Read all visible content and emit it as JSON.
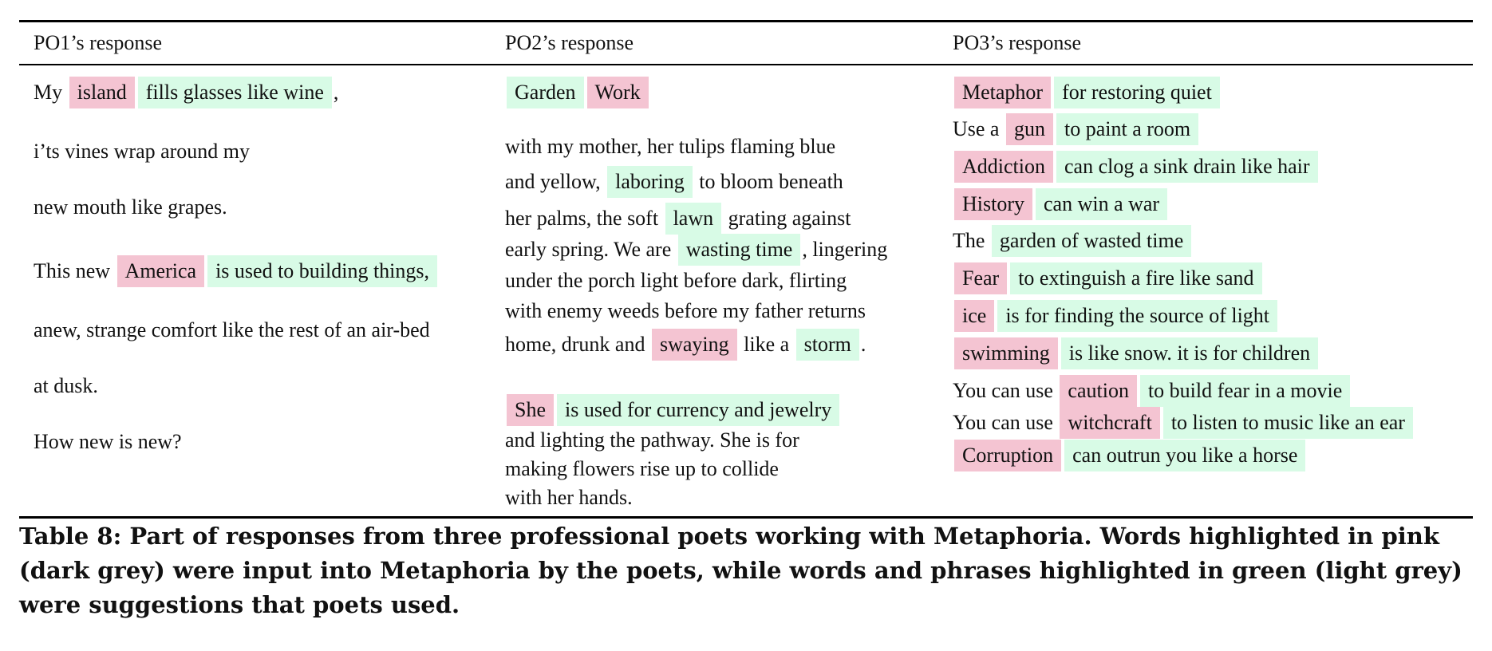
{
  "table": {
    "headers": [
      "PO1’s response",
      "PO2’s response",
      "PO3’s response"
    ],
    "po1": {
      "lines": [
        [
          {
            "t": "My ",
            "h": null
          },
          {
            "t": "island",
            "h": "pink"
          },
          {
            "t": "fills glasses like wine",
            "h": "green"
          },
          {
            "t": ",",
            "h": null
          }
        ],
        [
          {
            "t": "i’ts vines wrap around my",
            "h": null
          }
        ],
        [
          {
            "t": "new mouth like grapes.",
            "h": null
          }
        ],
        [
          {
            "t": "This new ",
            "h": null
          },
          {
            "t": "America",
            "h": "pink"
          },
          {
            "t": "is used to building things,",
            "h": "green"
          }
        ],
        [
          {
            "t": "anew, strange comfort like the rest of an air-bed",
            "h": null
          }
        ],
        [
          {
            "t": "at dusk.",
            "h": null
          }
        ],
        [
          {
            "t": "How new is new?",
            "h": null
          }
        ]
      ]
    },
    "po2": {
      "lines": [
        [
          {
            "t": "Garden",
            "h": "green"
          },
          {
            "t": "Work",
            "h": "pink"
          }
        ],
        [
          {
            "t": "with my mother, her tulips flaming blue",
            "h": null
          }
        ],
        [
          {
            "t": "and yellow, ",
            "h": null
          },
          {
            "t": "laboring",
            "h": "green"
          },
          {
            "t": " to bloom beneath",
            "h": null
          }
        ],
        [
          {
            "t": "her palms, the soft ",
            "h": null
          },
          {
            "t": "lawn",
            "h": "green"
          },
          {
            "t": " grating against",
            "h": null
          }
        ],
        [
          {
            "t": "early spring. We are ",
            "h": null
          },
          {
            "t": "wasting time",
            "h": "green"
          },
          {
            "t": ", lingering",
            "h": null
          }
        ],
        [
          {
            "t": "under the porch light before dark, flirting",
            "h": null
          }
        ],
        [
          {
            "t": "with enemy weeds before my father returns",
            "h": null
          }
        ],
        [
          {
            "t": "home, drunk and ",
            "h": null
          },
          {
            "t": "swaying",
            "h": "pink"
          },
          {
            "t": " like a ",
            "h": null
          },
          {
            "t": "storm",
            "h": "green"
          },
          {
            "t": ".",
            "h": null
          }
        ],
        [
          {
            "t": "She",
            "h": "pink"
          },
          {
            "t": "is used for currency and jewelry",
            "h": "green"
          }
        ],
        [
          {
            "t": "and lighting the pathway. She is for",
            "h": null
          }
        ],
        [
          {
            "t": "making flowers rise up to collide",
            "h": null
          }
        ],
        [
          {
            "t": "with her hands.",
            "h": null
          }
        ]
      ]
    },
    "po3": {
      "lines": [
        [
          {
            "t": "Metaphor",
            "h": "pink"
          },
          {
            "t": "for restoring quiet",
            "h": "green"
          }
        ],
        [
          {
            "t": "Use a ",
            "h": null
          },
          {
            "t": "gun",
            "h": "pink"
          },
          {
            "t": "to paint a room",
            "h": "green"
          }
        ],
        [
          {
            "t": "Addiction",
            "h": "pink"
          },
          {
            "t": "can clog a sink drain like hair",
            "h": "green"
          }
        ],
        [
          {
            "t": "History",
            "h": "pink"
          },
          {
            "t": "can win a war",
            "h": "green"
          }
        ],
        [
          {
            "t": "The ",
            "h": null
          },
          {
            "t": "garden of wasted time",
            "h": "green"
          }
        ],
        [
          {
            "t": "Fear",
            "h": "pink"
          },
          {
            "t": "to extinguish a fire like sand",
            "h": "green"
          }
        ],
        [
          {
            "t": "ice",
            "h": "pink"
          },
          {
            "t": "is for finding the source of light",
            "h": "green"
          }
        ],
        [
          {
            "t": "swimming",
            "h": "pink"
          },
          {
            "t": "is like snow. it is for children",
            "h": "green"
          }
        ],
        [
          {
            "t": "You can use ",
            "h": null
          },
          {
            "t": "caution",
            "h": "pink"
          },
          {
            "t": "to build fear in a movie",
            "h": "green"
          }
        ],
        [
          {
            "t": "You can use ",
            "h": null
          },
          {
            "t": "witchcraft",
            "h": "pink"
          },
          {
            "t": "to listen to music like an ear",
            "h": "green"
          }
        ],
        [
          {
            "t": "Corruption",
            "h": "pink"
          },
          {
            "t": "can outrun you like a horse",
            "h": "green"
          }
        ]
      ]
    }
  },
  "caption": "Table 8: Part of responses from three professional poets working with Metaphoria. Words highlighted in pink (dark grey) were input into Metaphoria by the poets, while words and phrases highlighted in green (light grey) were suggestions that poets used.",
  "colors": {
    "pink_highlight": "#f4c4d2",
    "green_highlight": "#d8fbe6",
    "rule": "#000000"
  }
}
